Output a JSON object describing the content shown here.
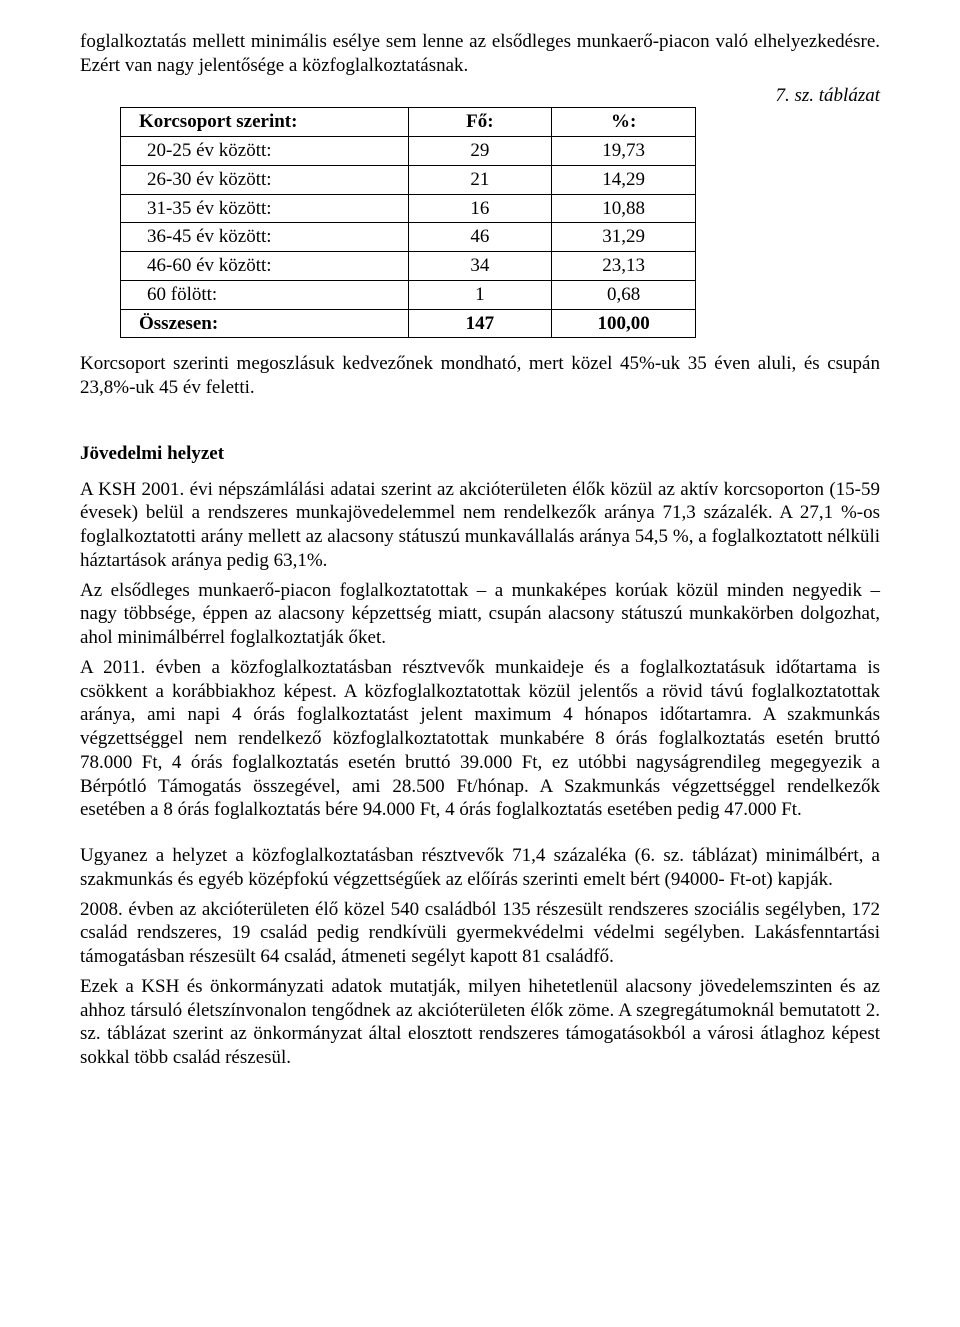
{
  "intro": {
    "p1": "foglalkoztatás mellett minimális esélye sem lenne az elsődleges munkaerő-piacon való elhelyezkedésre. Ezért van nagy jelentősége a közfoglalkoztatásnak."
  },
  "table7": {
    "caption": "7. sz. táblázat",
    "headers": {
      "col1": "Korcsoport szerint:",
      "col2": "Fő:",
      "col3": "%:"
    },
    "rows": [
      {
        "label": "20-25 év között:",
        "count": "29",
        "pct": "19,73"
      },
      {
        "label": "26-30 év között:",
        "count": "21",
        "pct": "14,29"
      },
      {
        "label": "31-35 év között:",
        "count": "16",
        "pct": "10,88"
      },
      {
        "label": "36-45 év között:",
        "count": "46",
        "pct": "31,29"
      },
      {
        "label": "46-60 év között:",
        "count": "34",
        "pct": "23,13"
      },
      {
        "label": "60 fölött:",
        "count": "1",
        "pct": "0,68"
      }
    ],
    "total": {
      "label": "Összesen:",
      "count": "147",
      "pct": "100,00"
    }
  },
  "afterTable": {
    "p1": "Korcsoport szerinti megoszlásuk kedvezőnek mondható, mert közel 45%-uk 35 éven aluli, és csupán 23,8%-uk 45 év feletti."
  },
  "income": {
    "heading": "Jövedelmi helyzet",
    "p1": "A KSH 2001. évi népszámlálási adatai szerint az akcióterületen élők közül az aktív korcsoporton (15-59 évesek) belül a rendszeres munkajövedelemmel nem rendelkezők aránya 71,3 százalék. A 27,1 %-os foglalkoztatotti arány mellett az alacsony státuszú munkavállalás aránya 54,5 %, a foglalkoztatott nélküli háztartások aránya pedig 63,1%.",
    "p2": "Az elsődleges munkaerő-piacon foglalkoztatottak – a munkaképes korúak közül minden negyedik – nagy többsége, éppen az alacsony képzettség miatt, csupán alacsony státuszú munkakörben dolgozhat, ahol minimálbérrel foglalkoztatják őket.",
    "p3": "A 2011. évben a közfoglalkoztatásban résztvevők munkaideje és a foglalkoztatásuk időtartama is csökkent a korábbiakhoz képest. A közfoglalkoztatottak közül jelentős a rövid távú foglalkoztatottak aránya, ami napi 4 órás foglalkoztatást jelent maximum 4 hónapos időtartamra. A szakmunkás végzettséggel nem rendelkező közfoglalkoztatottak munkabére 8 órás foglalkoztatás esetén bruttó 78.000 Ft, 4 órás foglalkoztatás esetén bruttó 39.000 Ft, ez utóbbi nagyságrendileg megegyezik a Bérpótló Támogatás összegével, ami 28.500 Ft/hónap. A Szakmunkás végzettséggel rendelkezők esetében a 8 órás foglalkoztatás bére 94.000 Ft, 4 órás foglalkoztatás esetében pedig 47.000 Ft.",
    "p4": "Ugyanez a helyzet a közfoglalkoztatásban résztvevők 71,4 százaléka (6. sz. táblázat) minimálbért, a szakmunkás és egyéb középfokú végzettségűek az előírás szerinti emelt bért (94000- Ft-ot) kapják.",
    "p5": "2008. évben az akcióterületen élő közel 540 családból 135 részesült rendszeres szociális segélyben, 172 család rendszeres, 19 család pedig rendkívüli gyermekvédelmi védelmi segélyben. Lakásfenntartási támogatásban részesült 64 család, átmeneti segélyt kapott 81 családfő.",
    "p6": "Ezek a KSH és önkormányzati adatok mutatják, milyen hihetetlenül alacsony jövedelemszinten és az ahhoz társuló életszínvonalon tengődnek az akcióterületen élők zöme. A szegregátumoknál bemutatott 2. sz. táblázat szerint az önkormányzat által elosztott rendszeres támogatásokból a városi átlaghoz képest sokkal több család részesül."
  }
}
